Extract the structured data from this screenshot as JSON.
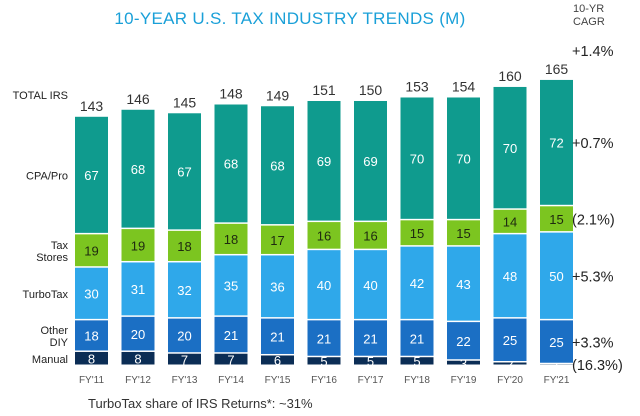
{
  "chart_data": {
    "type": "bar",
    "stacked": true,
    "title": "10-YEAR U.S. TAX INDUSTRY TRENDS (M)",
    "categories": [
      "FY'11",
      "FY'12",
      "FY'13",
      "FY'14",
      "FY'15",
      "FY'16",
      "FY'17",
      "FY'18",
      "FY'19",
      "FY'20",
      "FY'21"
    ],
    "series": [
      {
        "name": "Manual",
        "color": "#0b2d55",
        "label_color": "#ffffff",
        "values": [
          8,
          8,
          7,
          7,
          6,
          5,
          5,
          5,
          3,
          2,
          1
        ]
      },
      {
        "name": "Other DIY",
        "color": "#1b6fc4",
        "label_color": "#ffffff",
        "values": [
          18,
          20,
          20,
          21,
          21,
          21,
          21,
          21,
          22,
          25,
          25
        ]
      },
      {
        "name": "TurboTax",
        "color": "#2fa8ea",
        "label_color": "#ffffff",
        "values": [
          30,
          31,
          32,
          35,
          36,
          40,
          40,
          42,
          43,
          48,
          50
        ]
      },
      {
        "name": "Tax Stores",
        "color": "#7cc520",
        "label_color": "#1f2a10",
        "values": [
          19,
          19,
          18,
          18,
          17,
          16,
          16,
          15,
          15,
          14,
          15
        ]
      },
      {
        "name": "CPA/Pro",
        "color": "#0f9b8e",
        "label_color": "#ffffff",
        "values": [
          67,
          68,
          67,
          68,
          68,
          69,
          69,
          70,
          70,
          70,
          72
        ]
      }
    ],
    "totals_label": "TOTAL IRS",
    "totals": [
      143,
      146,
      145,
      148,
      149,
      151,
      150,
      153,
      154,
      160,
      165
    ],
    "cagr_header": [
      "10-YR",
      "CAGR"
    ],
    "cagr": {
      "total": "+1.4%",
      "CPA/Pro": "+0.7%",
      "Tax Stores": "(2.1%)",
      "TurboTax": "+5.3%",
      "Other DIY": "+3.3%",
      "Manual": "(16.3%)"
    },
    "row_labels": {
      "CPA/Pro": [
        "CPA/Pro"
      ],
      "Tax Stores": [
        "Tax",
        "Stores"
      ],
      "TurboTax": [
        "TurboTax"
      ],
      "Other DIY": [
        "Other",
        "DIY"
      ],
      "Manual": [
        "Manual"
      ]
    },
    "footer": "TurboTax share of IRS Returns*: ~31%"
  }
}
